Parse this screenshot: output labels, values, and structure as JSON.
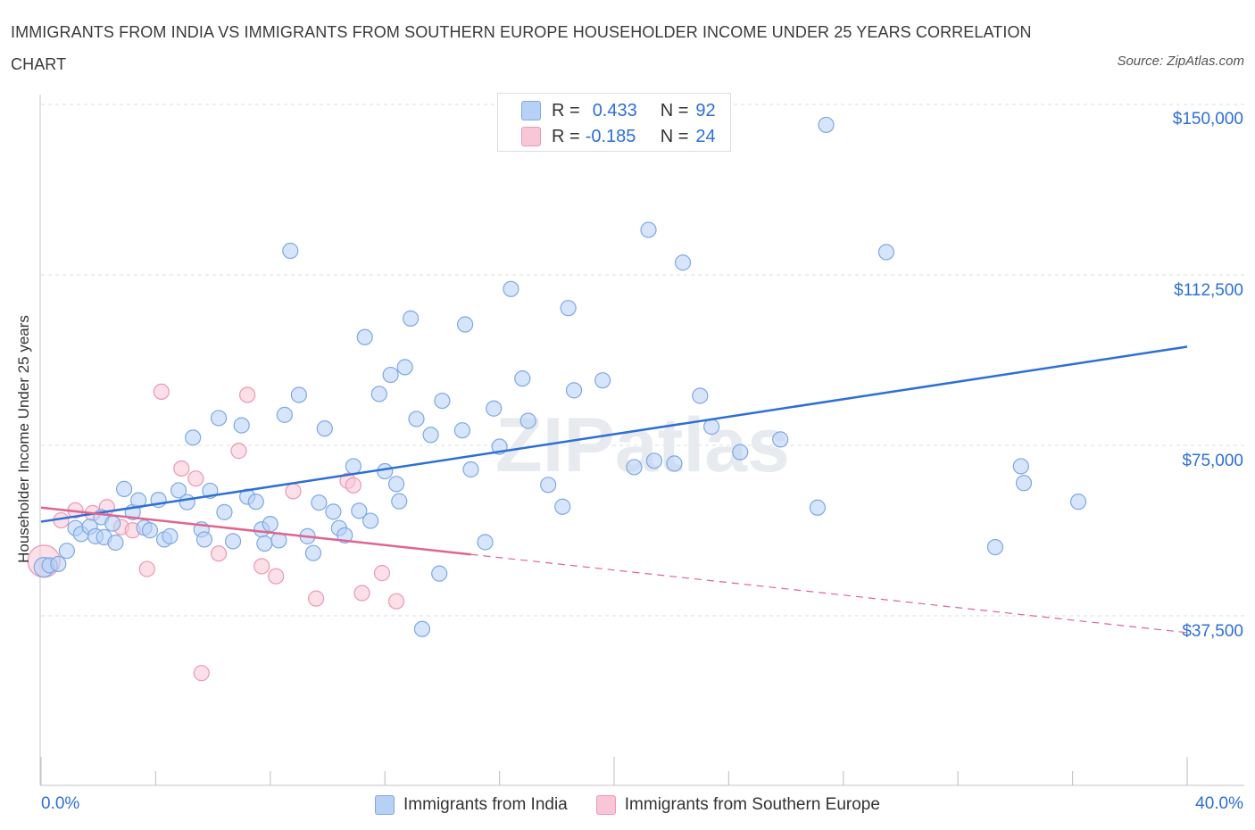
{
  "title": "IMMIGRANTS FROM INDIA VS IMMIGRANTS FROM SOUTHERN EUROPE HOUSEHOLDER INCOME UNDER 25 YEARS CORRELATION CHART",
  "source": "Source: ZipAtlas.com",
  "watermark": "ZIPatlas",
  "legend": {
    "r_label": "R =",
    "n_label": "N =",
    "india": {
      "r": "0.433",
      "n": "92"
    },
    "southern_europe": {
      "r": "-0.185",
      "n": "24"
    }
  },
  "colors": {
    "india_fill": "#b7d0f5",
    "india_stroke": "#7da8e6",
    "india_line": "#2d6fd6",
    "se_fill": "#f8c6d6",
    "se_stroke": "#ee97b3",
    "se_line": "#e0648f",
    "tick_text": "#2d6fd6",
    "grid": "#dddddd"
  },
  "chart_data": {
    "type": "scatter",
    "title": "IMMIGRANTS FROM INDIA VS IMMIGRANTS FROM SOUTHERN EUROPE HOUSEHOLDER INCOME UNDER 25 YEARS CORRELATION CHART",
    "xlabel": "",
    "ylabel": "Householder Income Under 25 years",
    "xlim": [
      0,
      40
    ],
    "ylim": [
      0,
      150000
    ],
    "x_tick_labels": [
      "0.0%",
      "40.0%"
    ],
    "y_ticks": [
      {
        "value": 37500,
        "label": "$37,500"
      },
      {
        "value": 75000,
        "label": "$75,000"
      },
      {
        "value": 112500,
        "label": "$112,500"
      },
      {
        "value": 150000,
        "label": "$150,000"
      }
    ],
    "series": [
      {
        "name": "Immigrants from India",
        "points": [
          [
            0.1,
            48200
          ],
          [
            0.3,
            48600
          ],
          [
            0.6,
            48900
          ],
          [
            0.9,
            51800
          ],
          [
            1.2,
            56800
          ],
          [
            1.4,
            55500
          ],
          [
            1.7,
            57100
          ],
          [
            1.9,
            55000
          ],
          [
            2.1,
            59200
          ],
          [
            2.2,
            54800
          ],
          [
            2.5,
            57800
          ],
          [
            2.6,
            53600
          ],
          [
            2.9,
            65400
          ],
          [
            3.2,
            60300
          ],
          [
            3.4,
            62900
          ],
          [
            3.6,
            56900
          ],
          [
            3.8,
            56300
          ],
          [
            4.1,
            63000
          ],
          [
            4.3,
            54300
          ],
          [
            4.5,
            55000
          ],
          [
            4.8,
            65100
          ],
          [
            5.1,
            62500
          ],
          [
            5.3,
            76700
          ],
          [
            5.6,
            56500
          ],
          [
            5.7,
            54300
          ],
          [
            5.9,
            65000
          ],
          [
            6.2,
            81000
          ],
          [
            6.4,
            60300
          ],
          [
            6.7,
            53900
          ],
          [
            7.0,
            79400
          ],
          [
            7.2,
            63700
          ],
          [
            7.5,
            62600
          ],
          [
            7.7,
            56500
          ],
          [
            7.8,
            53400
          ],
          [
            8.0,
            57700
          ],
          [
            8.3,
            54100
          ],
          [
            8.5,
            81700
          ],
          [
            8.7,
            117800
          ],
          [
            9.0,
            86100
          ],
          [
            9.3,
            55000
          ],
          [
            9.5,
            51300
          ],
          [
            9.7,
            62400
          ],
          [
            9.9,
            78700
          ],
          [
            10.2,
            60400
          ],
          [
            10.4,
            56800
          ],
          [
            10.6,
            55200
          ],
          [
            10.9,
            70400
          ],
          [
            11.1,
            60600
          ],
          [
            11.3,
            98800
          ],
          [
            11.5,
            58400
          ],
          [
            11.8,
            86300
          ],
          [
            12.0,
            69300
          ],
          [
            12.2,
            90500
          ],
          [
            12.4,
            66500
          ],
          [
            12.5,
            62700
          ],
          [
            12.7,
            92200
          ],
          [
            12.9,
            102900
          ],
          [
            13.1,
            80800
          ],
          [
            13.6,
            77300
          ],
          [
            13.9,
            46800
          ],
          [
            14.0,
            84800
          ],
          [
            14.7,
            78300
          ],
          [
            14.8,
            101600
          ],
          [
            15.0,
            69700
          ],
          [
            15.5,
            53700
          ],
          [
            15.8,
            83100
          ],
          [
            16.0,
            74700
          ],
          [
            16.4,
            109400
          ],
          [
            16.8,
            89700
          ],
          [
            17.0,
            80400
          ],
          [
            17.7,
            66300
          ],
          [
            18.2,
            61500
          ],
          [
            18.4,
            105200
          ],
          [
            18.6,
            87100
          ],
          [
            19.6,
            89300
          ],
          [
            20.7,
            70200
          ],
          [
            21.2,
            122400
          ],
          [
            21.4,
            71600
          ],
          [
            22.1,
            71000
          ],
          [
            22.4,
            115200
          ],
          [
            23.0,
            85900
          ],
          [
            23.4,
            79100
          ],
          [
            24.4,
            73500
          ],
          [
            25.8,
            76300
          ],
          [
            27.1,
            61300
          ],
          [
            27.4,
            145500
          ],
          [
            29.5,
            117500
          ],
          [
            33.3,
            52600
          ],
          [
            34.2,
            70400
          ],
          [
            34.3,
            66700
          ],
          [
            36.2,
            62600
          ],
          [
            13.3,
            34600
          ]
        ]
      },
      {
        "name": "Immigrants from Southern Europe",
        "points": [
          [
            0.1,
            49500
          ],
          [
            0.7,
            58500
          ],
          [
            1.2,
            60700
          ],
          [
            1.8,
            60100
          ],
          [
            2.3,
            61400
          ],
          [
            2.8,
            57000
          ],
          [
            3.2,
            56300
          ],
          [
            3.7,
            47800
          ],
          [
            4.2,
            86800
          ],
          [
            4.9,
            69900
          ],
          [
            5.4,
            67700
          ],
          [
            5.6,
            24900
          ],
          [
            6.2,
            51200
          ],
          [
            6.9,
            73800
          ],
          [
            7.2,
            86100
          ],
          [
            7.7,
            48400
          ],
          [
            8.2,
            46200
          ],
          [
            8.8,
            64900
          ],
          [
            9.6,
            41300
          ],
          [
            10.7,
            67200
          ],
          [
            10.9,
            66200
          ],
          [
            11.2,
            42500
          ],
          [
            11.9,
            46900
          ],
          [
            12.4,
            40700
          ]
        ]
      }
    ],
    "trend_lines": [
      {
        "series": "Immigrants from India",
        "x": [
          0,
          40
        ],
        "y": [
          58200,
          96700
        ]
      },
      {
        "series": "Immigrants from Southern Europe",
        "x": [
          0,
          15
        ],
        "y": [
          61300,
          51000
        ],
        "dashed_extension_to": [
          40,
          33800
        ]
      }
    ]
  },
  "bottom_legend": [
    {
      "label": "Immigrants from India"
    },
    {
      "label": "Immigrants from Southern Europe"
    }
  ]
}
